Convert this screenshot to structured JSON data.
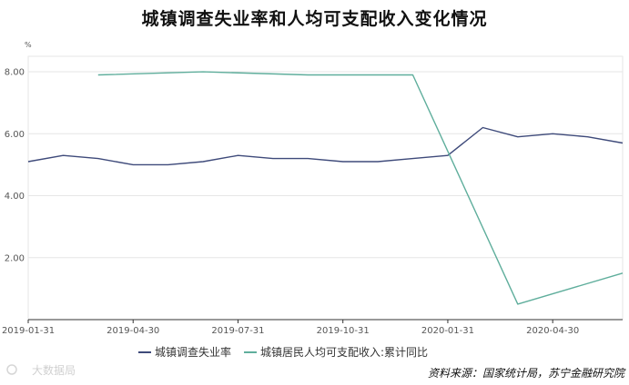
{
  "chart_data": {
    "type": "line",
    "title": "城镇调查失业率和人均可支配收入变化情况",
    "unit": "%",
    "ylim": [
      0,
      8.5
    ],
    "yticks": [
      "2.00",
      "4.00",
      "6.00",
      "8.00"
    ],
    "ytick_values": [
      2,
      4,
      6,
      8
    ],
    "x": [
      "2019-01-31",
      "2019-02-28",
      "2019-03-31",
      "2019-04-30",
      "2019-05-31",
      "2019-06-30",
      "2019-07-31",
      "2019-08-31",
      "2019-09-30",
      "2019-10-31",
      "2019-11-30",
      "2019-12-31",
      "2020-01-31",
      "2020-02-29",
      "2020-03-31",
      "2020-04-30",
      "2020-05-31",
      "2020-06-30"
    ],
    "xticks": [
      "2019-01-31",
      "2019-04-30",
      "2019-07-31",
      "2019-10-31",
      "2020-01-31",
      "2020-04-30"
    ],
    "grid": true,
    "legend_position": "bottom",
    "series": [
      {
        "name": "城镇调查失业率",
        "color": "#3e4a7a",
        "values": [
          5.1,
          5.3,
          5.2,
          5.0,
          5.0,
          5.1,
          5.3,
          5.2,
          5.2,
          5.1,
          5.1,
          5.2,
          5.3,
          6.2,
          5.9,
          6.0,
          5.9,
          5.7
        ]
      },
      {
        "name": "城镇居民人均可支配收入:累计同比",
        "color": "#5fae9c",
        "values": [
          null,
          null,
          7.9,
          null,
          null,
          8.0,
          null,
          null,
          7.9,
          null,
          null,
          7.9,
          null,
          null,
          0.5,
          null,
          null,
          1.5
        ]
      }
    ]
  },
  "footer": {
    "source": "资料来源：国家统计局，苏宁金融研究院",
    "watermark": "大数据局"
  }
}
